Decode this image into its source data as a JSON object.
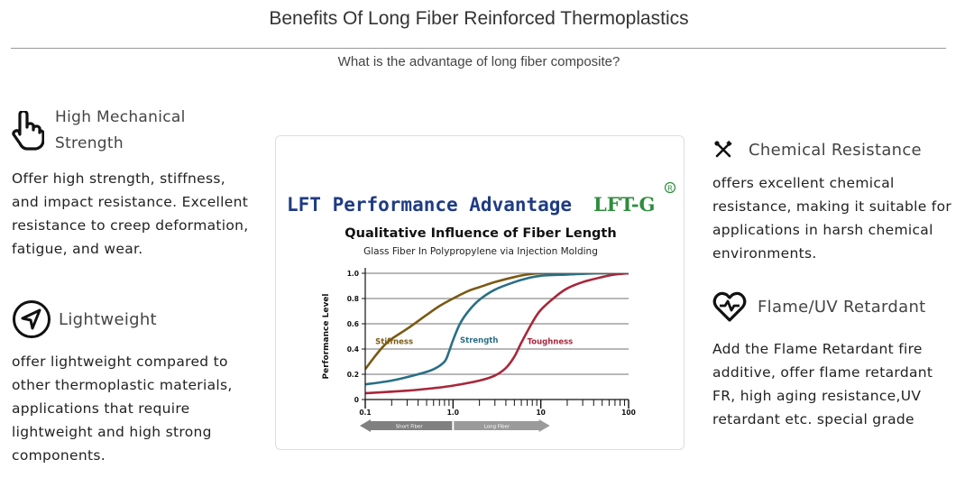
{
  "header": {
    "title": "Benefits Of Long Fiber Reinforced Thermoplastics",
    "subtitle": "What is the advantage of long fiber composite?"
  },
  "features": [
    {
      "icon": "hand-pointer-icon",
      "title": "High Mechanical Strength",
      "description": "Offer high strength, stiffness, and impact resistance. Excellent resistance to creep deformation, fatigue, and wear."
    },
    {
      "icon": "location-arrow-icon",
      "title": "Lightweight",
      "description": "offer lightweight compared to other thermoplastic materials, applications that require lightweight and high strong components."
    },
    {
      "icon": "tools-cross-icon",
      "title": "Chemical Resistance",
      "description": "offers excellent chemical resistance, making it suitable for applications in harsh chemical environments."
    },
    {
      "icon": "heart-pulse-icon",
      "title": "Flame/UV Retardant",
      "description": "Add the Flame Retardant fire additive, offer flame retardant FR, high aging resistance,UV retardant etc. special grade"
    }
  ],
  "chart_data": {
    "type": "line",
    "banner": "LFT Performance Advantage",
    "logo": "LFT-G",
    "title": "Qualitative Influence of Fiber Length",
    "subtitle": "Glass Fiber In Polypropylene via Injection Molding",
    "ylabel": "Performance Level",
    "xlabel": "",
    "x_scale": "log",
    "xlim": [
      0.1,
      100
    ],
    "ylim": [
      0,
      1.0
    ],
    "x_ticks": [
      "0.1",
      "1.0",
      "10",
      "100"
    ],
    "y_ticks": [
      "0",
      "0.2",
      "0.4",
      "0.6",
      "0.8",
      "1.0"
    ],
    "grid": true,
    "range_arrows": [
      {
        "label": "Short Fiber",
        "from": 0.1,
        "to": 1.0
      },
      {
        "label": "Long Fiber",
        "from": 1.0,
        "to": 10
      }
    ],
    "series": [
      {
        "name": "Stiffness",
        "color": "#7a5a14",
        "x": [
          0.1,
          0.125,
          0.16,
          0.2,
          0.3,
          0.5,
          0.7,
          1.0,
          1.5,
          2,
          3,
          5,
          7,
          10,
          20,
          50,
          100
        ],
        "y": [
          0.24,
          0.33,
          0.42,
          0.48,
          0.56,
          0.67,
          0.74,
          0.8,
          0.86,
          0.89,
          0.93,
          0.97,
          0.99,
          1.0,
          1.0,
          1.0,
          1.0
        ]
      },
      {
        "name": "Strength",
        "color": "#2a6f86",
        "x": [
          0.1,
          0.2,
          0.4,
          0.6,
          0.8,
          0.9,
          1.0,
          1.2,
          1.5,
          2,
          3,
          5,
          7,
          10,
          20,
          50,
          100
        ],
        "y": [
          0.12,
          0.15,
          0.2,
          0.24,
          0.3,
          0.38,
          0.47,
          0.6,
          0.7,
          0.79,
          0.87,
          0.93,
          0.96,
          0.98,
          0.99,
          1.0,
          1.0
        ]
      },
      {
        "name": "Toughness",
        "color": "#a8273a",
        "x": [
          0.1,
          0.3,
          0.6,
          1.0,
          2,
          3,
          4,
          5,
          6,
          8,
          10,
          15,
          20,
          30,
          50,
          70,
          100
        ],
        "y": [
          0.05,
          0.07,
          0.09,
          0.11,
          0.15,
          0.19,
          0.25,
          0.34,
          0.45,
          0.61,
          0.71,
          0.82,
          0.88,
          0.93,
          0.97,
          0.99,
          1.0
        ]
      }
    ],
    "label_positions": [
      {
        "name": "Stiffness",
        "x": 0.13,
        "y": 0.46
      },
      {
        "name": "Strength",
        "x": 1.2,
        "y": 0.47
      },
      {
        "name": "Toughness",
        "x": 7,
        "y": 0.46
      }
    ]
  }
}
